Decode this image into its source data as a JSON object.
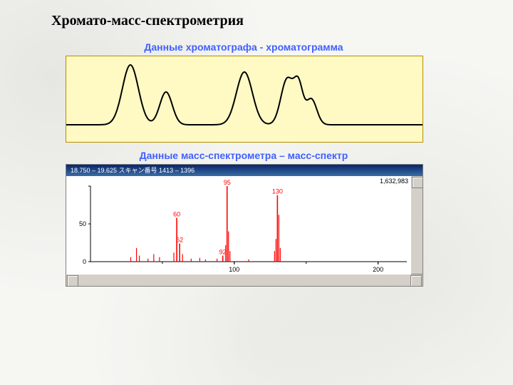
{
  "page": {
    "title": "Хромато-масс-спектрометрия",
    "title_fontsize": 20,
    "title_color": "#000000",
    "title_font": "Times New Roman",
    "background_color": "#f6f6f3"
  },
  "chromatogram": {
    "title": "Данные хроматографа - хроматограмма",
    "title_fontsize": 14,
    "title_color": "#4060ff",
    "box_bg": "#fff9c4",
    "box_border": "#b38f00",
    "line_color": "#000000",
    "line_width": 2,
    "xlim": [
      0,
      500
    ],
    "ylim": [
      0,
      120
    ],
    "baseline_y": 96,
    "peaks": [
      {
        "x": 90,
        "height": 84,
        "hw": 18
      },
      {
        "x": 140,
        "height": 46,
        "hw": 14
      },
      {
        "x": 250,
        "height": 74,
        "hw": 18
      },
      {
        "x": 310,
        "height": 64,
        "hw": 14
      },
      {
        "x": 326,
        "height": 52,
        "hw": 10
      },
      {
        "x": 344,
        "height": 36,
        "hw": 12
      }
    ]
  },
  "mass_spectrum": {
    "title": "Данные масс-спектрометра – масс-спектр",
    "title_fontsize": 14,
    "title_color": "#4060ff",
    "window_titlebar_text": "   18.750  –  19.625    スキャン番号 1413  –  1396",
    "window_titlebar_bg_top": "#0a246a",
    "window_titlebar_bg_bot": "#3a6ea5",
    "window_titlebar_text_color": "#ffffff",
    "window_border": "#808080",
    "scrollbar_bg": "#d4d0c8",
    "plot_bg": "#ffffff",
    "bar_color": "#ff0000",
    "axis_color": "#000000",
    "label_color": "#ff0000",
    "yaxis_label_color": "#000000",
    "readout_value": "1,632,983",
    "xlim": [
      0,
      220
    ],
    "xtick_labels": [
      "100",
      "200"
    ],
    "xtick_positions": [
      100,
      200
    ],
    "ylim": [
      0,
      100
    ],
    "ytick_labels": [
      "0",
      "50"
    ],
    "ytick_positions": [
      0,
      50
    ],
    "label_fontsize": 9,
    "labeled_peaks": [
      {
        "mz": 60,
        "intensity": 58,
        "label": "60"
      },
      {
        "mz": 62,
        "intensity": 24,
        "label": "62"
      },
      {
        "mz": 92,
        "intensity": 8,
        "label": "92"
      },
      {
        "mz": 95,
        "intensity": 100,
        "label": "95"
      },
      {
        "mz": 130,
        "intensity": 88,
        "label": "130"
      }
    ],
    "minor_peaks": [
      {
        "mz": 28,
        "intensity": 6
      },
      {
        "mz": 32,
        "intensity": 18
      },
      {
        "mz": 34,
        "intensity": 8
      },
      {
        "mz": 40,
        "intensity": 4
      },
      {
        "mz": 44,
        "intensity": 10
      },
      {
        "mz": 48,
        "intensity": 6
      },
      {
        "mz": 58,
        "intensity": 12
      },
      {
        "mz": 64,
        "intensity": 10
      },
      {
        "mz": 70,
        "intensity": 4
      },
      {
        "mz": 76,
        "intensity": 5
      },
      {
        "mz": 80,
        "intensity": 3
      },
      {
        "mz": 88,
        "intensity": 4
      },
      {
        "mz": 94,
        "intensity": 22
      },
      {
        "mz": 96,
        "intensity": 40
      },
      {
        "mz": 97,
        "intensity": 14
      },
      {
        "mz": 110,
        "intensity": 3
      },
      {
        "mz": 128,
        "intensity": 14
      },
      {
        "mz": 129,
        "intensity": 30
      },
      {
        "mz": 131,
        "intensity": 62
      },
      {
        "mz": 132,
        "intensity": 18
      }
    ]
  }
}
